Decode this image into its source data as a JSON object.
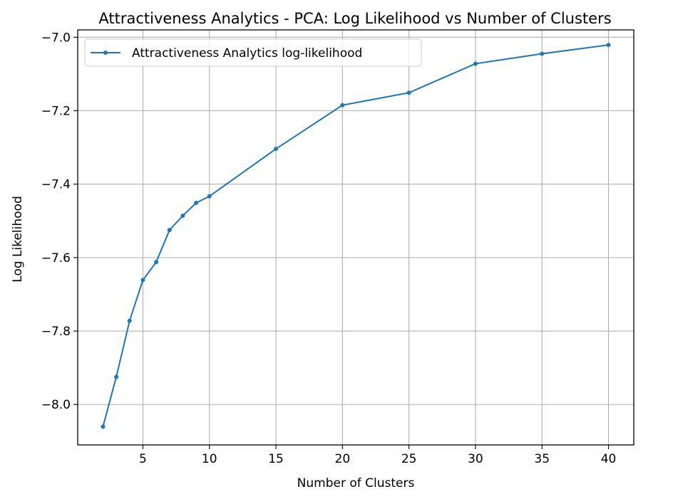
{
  "chart_data": {
    "type": "line",
    "title": "Attractiveness Analytics - PCA: Log Likelihood vs Number of Clusters",
    "xlabel": "Number of Clusters",
    "ylabel": "Log Likelihood",
    "xlim": [
      0.1,
      41.9
    ],
    "ylim": [
      -8.11,
      -6.98
    ],
    "x_ticks": [
      5,
      10,
      15,
      20,
      25,
      30,
      35,
      40
    ],
    "x_tick_labels": [
      "5",
      "10",
      "15",
      "20",
      "25",
      "30",
      "35",
      "40"
    ],
    "y_ticks": [
      -8.0,
      -7.8,
      -7.6,
      -7.4,
      -7.2,
      -7.0
    ],
    "y_tick_labels": [
      "−8.0",
      "−7.8",
      "−7.6",
      "−7.4",
      "−7.2",
      "−7.0"
    ],
    "grid": true,
    "legend_position": "upper-left",
    "series": [
      {
        "name": "Attractiveness Analytics log-likelihood",
        "color": "#1f77b4",
        "marker": "dot",
        "x": [
          2,
          3,
          4,
          5,
          6,
          7,
          8,
          9,
          10,
          15,
          20,
          25,
          30,
          35,
          40
        ],
        "y": [
          -8.06,
          -7.925,
          -7.772,
          -7.661,
          -7.612,
          -7.525,
          -7.486,
          -7.451,
          -7.433,
          -7.304,
          -7.185,
          -7.151,
          -7.072,
          -7.045,
          -7.021
        ]
      }
    ]
  }
}
